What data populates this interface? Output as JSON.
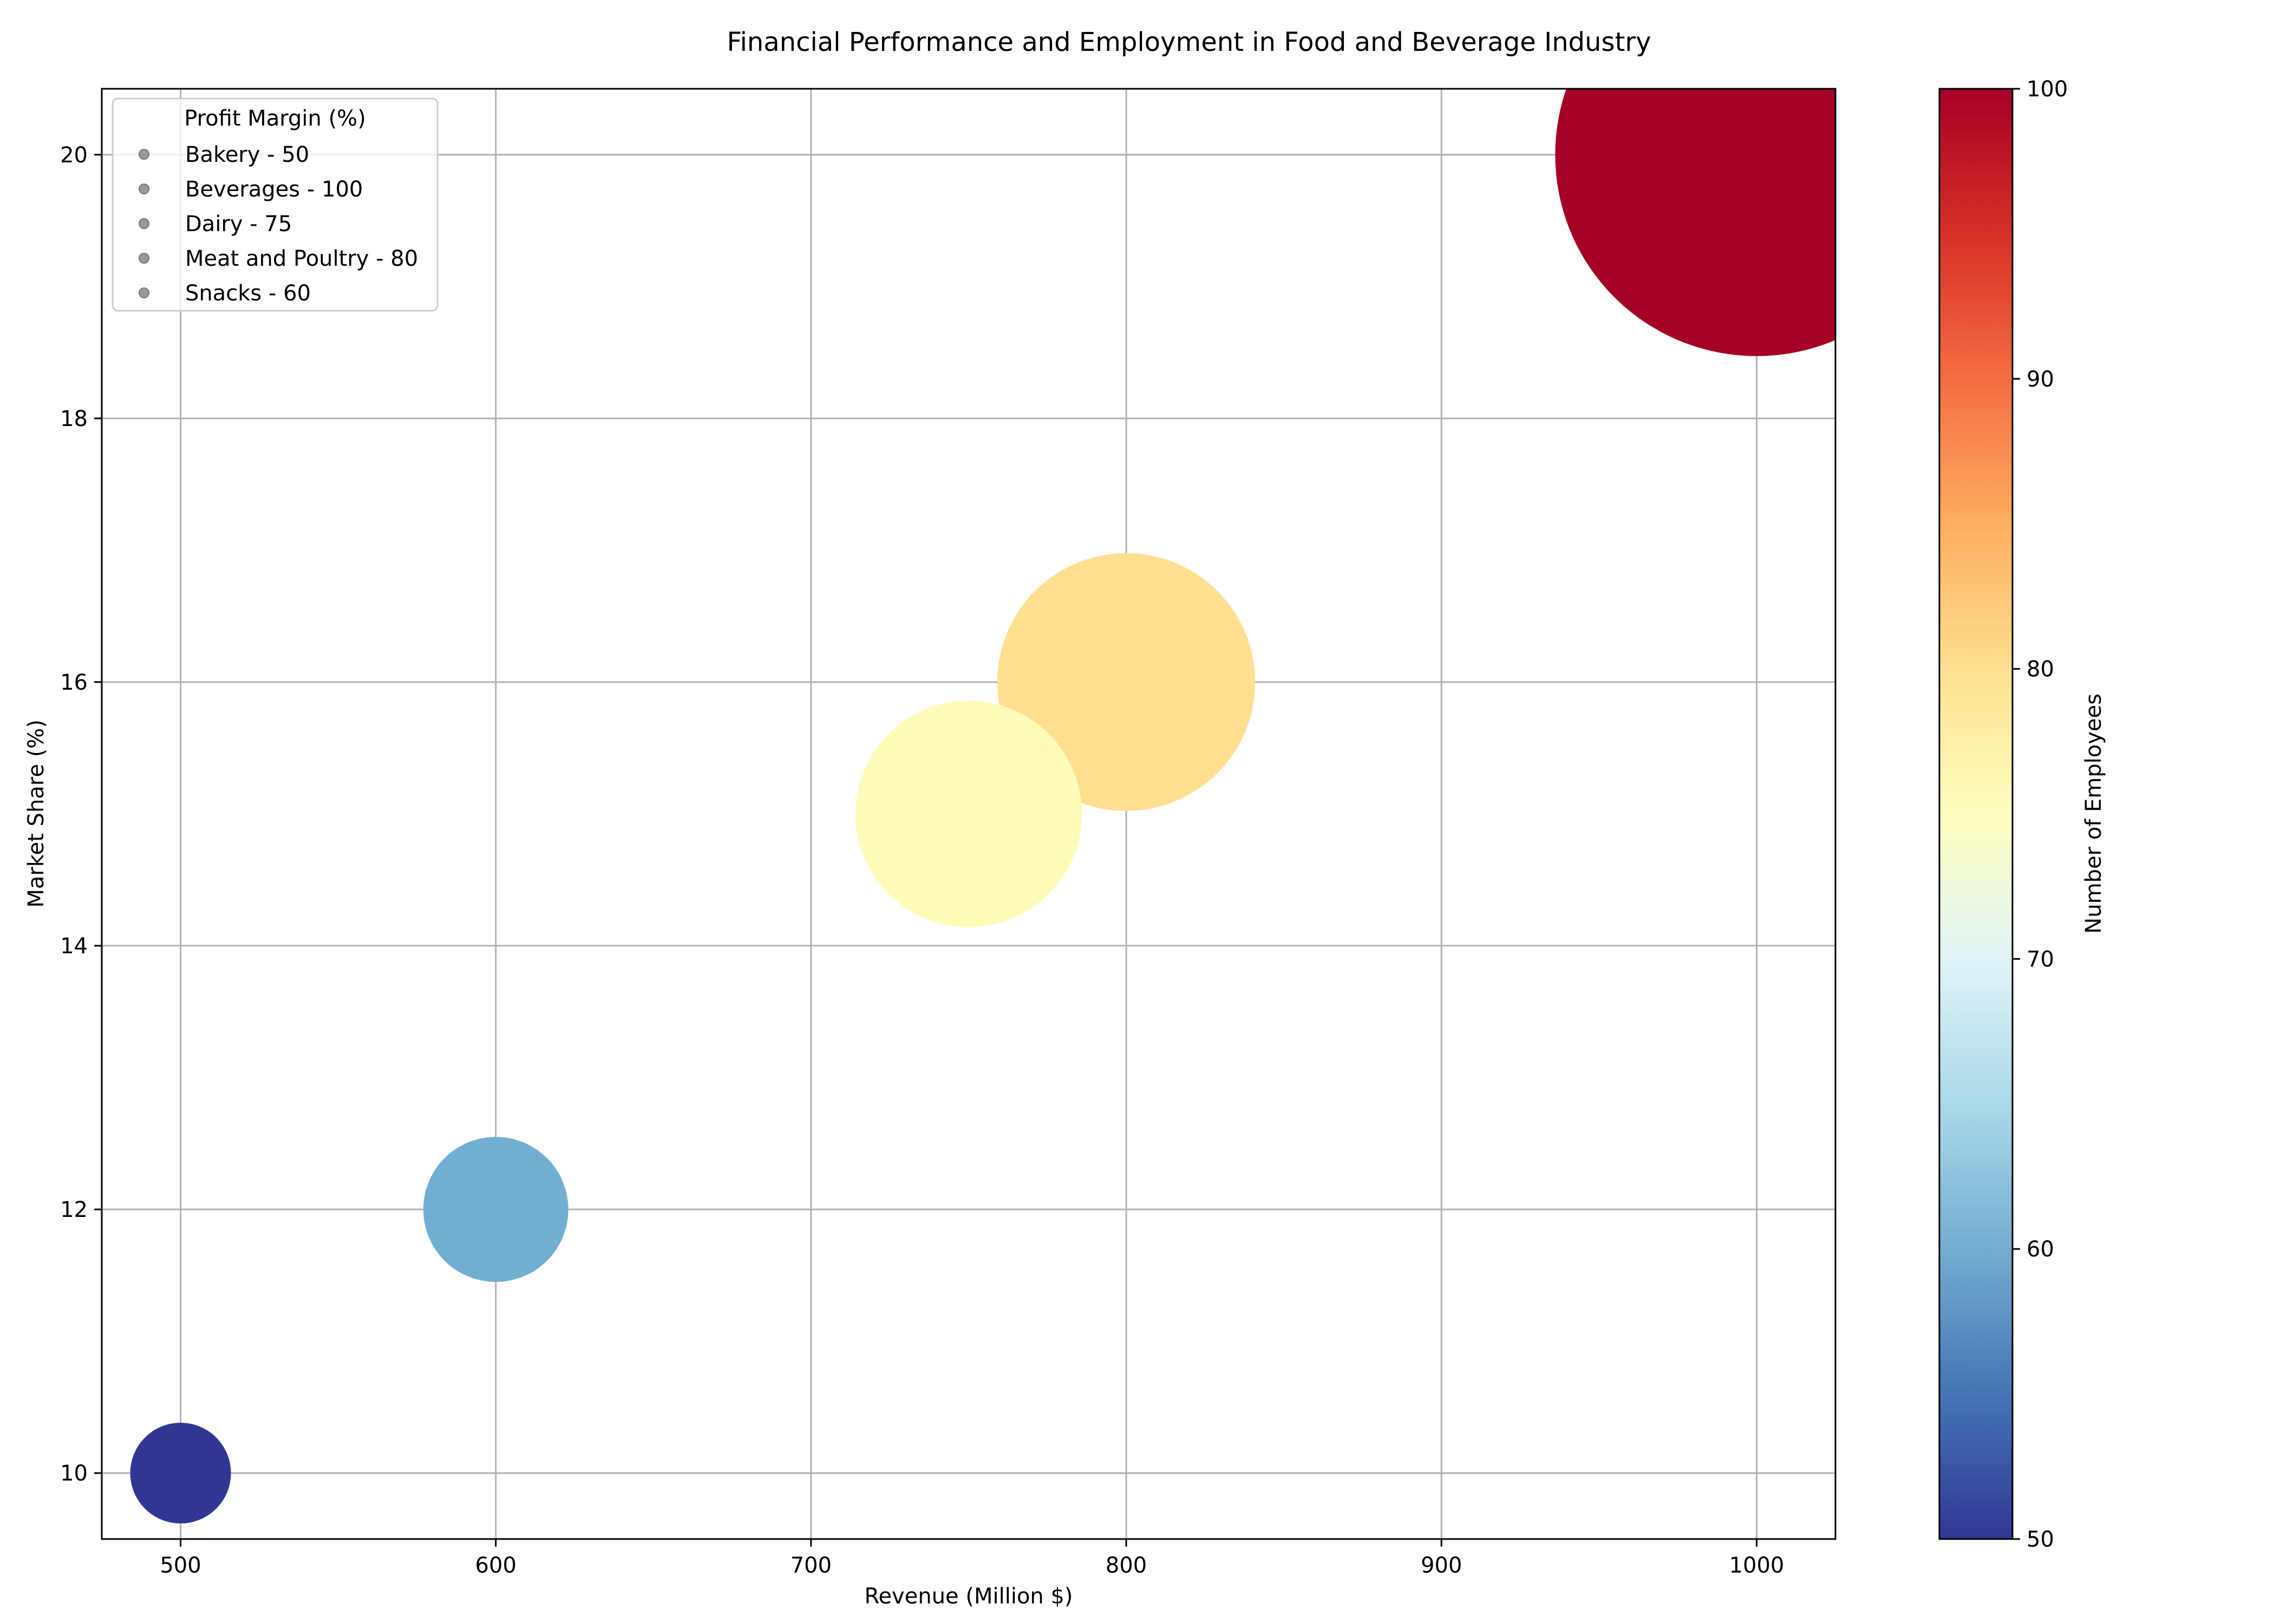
{
  "chart_data": {
    "type": "scatter",
    "title": "Financial Performance and Employment in Food and Beverage Industry",
    "xlabel": "Revenue (Million $)",
    "ylabel": "Market Share (%)",
    "xlim": [
      475,
      1025
    ],
    "ylim": [
      9.5,
      20.5
    ],
    "xticks": [
      500,
      600,
      700,
      800,
      900,
      1000
    ],
    "yticks": [
      10,
      12,
      14,
      16,
      18,
      20
    ],
    "grid": true,
    "legend": {
      "title": "Profit Margin (%)",
      "placement": "top-left",
      "entries": [
        "Bakery - 50",
        "Beverages - 100",
        "Dairy - 75",
        "Meat and Poultry - 80",
        "Snacks - 60"
      ]
    },
    "colorbar": {
      "label": "Number of Employees",
      "colormap": "RdYlBu_r",
      "range": [
        50,
        100
      ],
      "ticks": [
        50,
        60,
        70,
        80,
        90,
        100
      ]
    },
    "points": [
      {
        "category": "Bakery",
        "revenue": 500,
        "market_share": 10,
        "employees": 50,
        "profit_margin": 50
      },
      {
        "category": "Beverages",
        "revenue": 1000,
        "market_share": 20,
        "employees": 100,
        "profit_margin": 100
      },
      {
        "category": "Dairy",
        "revenue": 750,
        "market_share": 15,
        "employees": 75,
        "profit_margin": 75
      },
      {
        "category": "Meat and Poultry",
        "revenue": 800,
        "market_share": 16,
        "employees": 80,
        "profit_margin": 80
      },
      {
        "category": "Snacks",
        "revenue": 600,
        "market_share": 12,
        "employees": 60,
        "profit_margin": 60
      }
    ],
    "colors": {
      "Bakery": "#313695",
      "Beverages": "#a50026",
      "Dairy": "#fffbbb",
      "Meat and Poultry": "#fede8f",
      "Snacks": "#72aed2"
    }
  }
}
